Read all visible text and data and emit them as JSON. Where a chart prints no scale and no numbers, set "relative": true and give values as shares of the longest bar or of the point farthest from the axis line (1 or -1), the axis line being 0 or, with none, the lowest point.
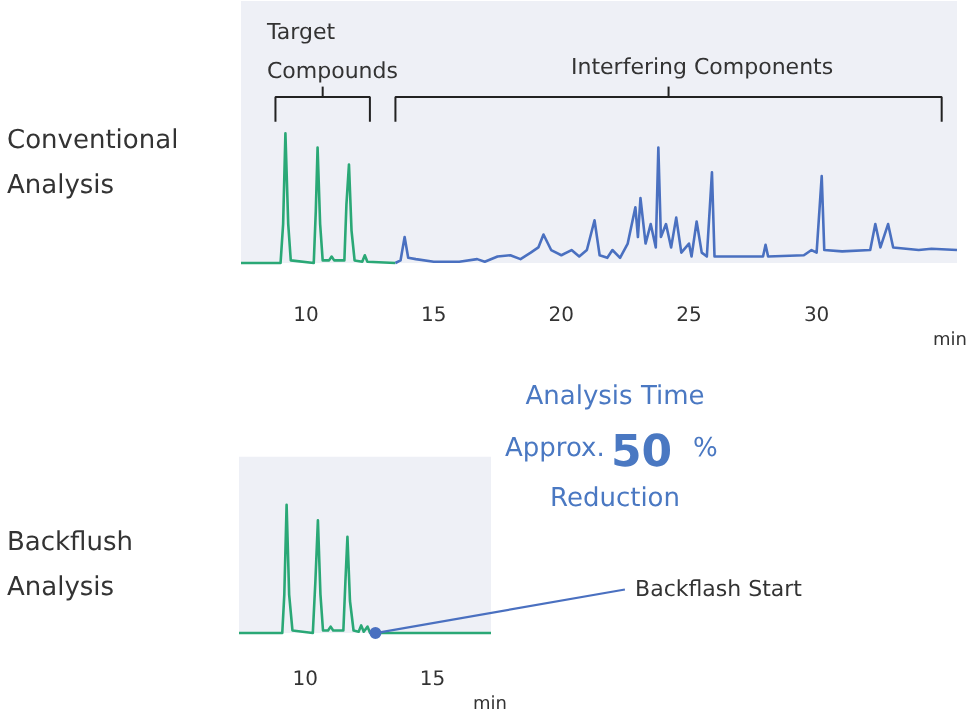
{
  "chart_data": [
    {
      "type": "line",
      "title": "Conventional Analysis",
      "xlabel": "min",
      "relative": true,
      "xlim": [
        7.45,
        35.5
      ],
      "xticks": [
        10,
        15,
        20,
        25,
        30
      ],
      "tick_labels": "x",
      "grid": false,
      "annotations": [
        "Target Compounds",
        "Interfering Components"
      ],
      "series": [
        {
          "color": "#2aa876",
          "x": [
            7.45,
            9.0,
            9.1,
            9.19,
            9.3,
            9.4,
            10.3,
            10.38,
            10.45,
            10.55,
            10.65,
            10.9,
            11.0,
            11.1,
            11.5,
            11.58,
            11.68,
            11.78,
            11.9,
            12.2,
            12.3,
            12.4,
            13.5
          ],
          "values": [
            0,
            0,
            0.3,
            1.0,
            0.3,
            0.02,
            0,
            0.4,
            0.89,
            0.3,
            0.02,
            0.02,
            0.05,
            0.02,
            0.02,
            0.45,
            0.76,
            0.25,
            0.02,
            0.01,
            0.06,
            0.01,
            0
          ]
        },
        {
          "color": "#4a70c0",
          "x": [
            13.5,
            13.7,
            13.86,
            14.0,
            14.3,
            15,
            16,
            16.7,
            17,
            17.5,
            18,
            18.4,
            18.8,
            19.1,
            19.3,
            19.6,
            20.0,
            20.4,
            20.7,
            21.0,
            21.3,
            21.5,
            21.8,
            22.0,
            22.3,
            22.6,
            22.9,
            23.0,
            23.1,
            23.3,
            23.5,
            23.7,
            23.8,
            23.9,
            24.1,
            24.3,
            24.5,
            24.7,
            25.0,
            25.1,
            25.3,
            25.5,
            25.7,
            25.9,
            26.0,
            27,
            27.9,
            28.0,
            28.1,
            29.5,
            29.8,
            30.0,
            30.2,
            30.3,
            31,
            32.1,
            32.3,
            32.5,
            32.8,
            33.0,
            34,
            34.5,
            35.5
          ],
          "values": [
            0,
            0.02,
            0.2,
            0.04,
            0.03,
            0.01,
            0.01,
            0.03,
            0.01,
            0.05,
            0.06,
            0.03,
            0.08,
            0.12,
            0.22,
            0.1,
            0.06,
            0.1,
            0.05,
            0.1,
            0.33,
            0.06,
            0.04,
            0.1,
            0.04,
            0.15,
            0.43,
            0.2,
            0.5,
            0.15,
            0.3,
            0.12,
            0.89,
            0.2,
            0.3,
            0.12,
            0.35,
            0.08,
            0.15,
            0.05,
            0.32,
            0.08,
            0.05,
            0.7,
            0.05,
            0.05,
            0.05,
            0.14,
            0.05,
            0.06,
            0.1,
            0.08,
            0.67,
            0.1,
            0.09,
            0.1,
            0.3,
            0.12,
            0.3,
            0.12,
            0.1,
            0.11,
            0.1
          ]
        }
      ]
    },
    {
      "type": "line",
      "title": "Backflush Analysis",
      "xlabel": "min",
      "relative": true,
      "xlim": [
        7.4,
        17.3
      ],
      "xticks": [
        10,
        15
      ],
      "tick_labels": "x",
      "grid": false,
      "annotations": [
        "Analysis Time",
        "Approx.",
        "50",
        "%",
        "Reduction",
        {
          "text": "Backflash Start",
          "x": 12.76,
          "y": 0
        }
      ],
      "series": [
        {
          "color": "#2aa876",
          "x": [
            7.4,
            9.1,
            9.18,
            9.27,
            9.37,
            9.5,
            10.3,
            10.4,
            10.5,
            10.6,
            10.7,
            10.9,
            11.0,
            11.1,
            11.5,
            11.58,
            11.66,
            11.76,
            11.9,
            12.1,
            12.2,
            12.3,
            12.45,
            12.55,
            17.3
          ],
          "values": [
            0,
            0,
            0.3,
            1.0,
            0.3,
            0.02,
            0,
            0.4,
            0.88,
            0.3,
            0.02,
            0.02,
            0.05,
            0.02,
            0.02,
            0.4,
            0.75,
            0.25,
            0.02,
            0.01,
            0.06,
            0.01,
            0.05,
            0,
            0
          ]
        }
      ]
    }
  ]
}
